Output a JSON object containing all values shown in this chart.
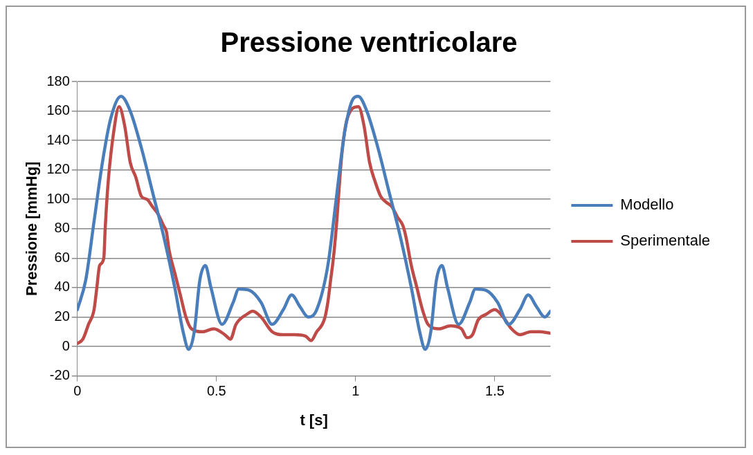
{
  "chart_data": {
    "type": "line",
    "title": "Pressione ventricolare",
    "xlabel": "t [s]",
    "ylabel": "Pressione [mmHg]",
    "xlim": [
      0,
      1.7
    ],
    "xticks": [
      0,
      0.5,
      1,
      1.5
    ],
    "ylim": [
      -20,
      180
    ],
    "yticks": [
      -20,
      0,
      20,
      40,
      60,
      80,
      100,
      120,
      140,
      160,
      180
    ],
    "grid": "y",
    "legend": "right",
    "marker": "none",
    "line_style": "solid",
    "series": [
      {
        "name": "Modello",
        "color": "#4a7ebb",
        "x": [
          0,
          0.03,
          0.06,
          0.09,
          0.12,
          0.157,
          0.19,
          0.23,
          0.27,
          0.31,
          0.35,
          0.38,
          0.4,
          0.42,
          0.44,
          0.46,
          0.48,
          0.52,
          0.56,
          0.58,
          0.62,
          0.66,
          0.7,
          0.74,
          0.77,
          0.8,
          0.83,
          0.86,
          0.9,
          0.93,
          0.96,
          0.99,
          1.009,
          1.04,
          1.08,
          1.12,
          1.16,
          1.2,
          1.23,
          1.25,
          1.27,
          1.29,
          1.31,
          1.33,
          1.37,
          1.41,
          1.43,
          1.47,
          1.51,
          1.55,
          1.59,
          1.62,
          1.65,
          1.68,
          1.7
        ],
        "values": [
          25,
          45,
          85,
          125,
          155,
          170,
          160,
          135,
          105,
          75,
          40,
          10,
          -2,
          10,
          45,
          55,
          40,
          15,
          30,
          39,
          38,
          30,
          15,
          25,
          35,
          27,
          20,
          25,
          55,
          100,
          145,
          168,
          170,
          160,
          135,
          105,
          75,
          40,
          10,
          -2,
          10,
          45,
          55,
          40,
          15,
          30,
          39,
          38,
          30,
          15,
          25,
          35,
          27,
          20,
          24
        ]
      },
      {
        "name": "Sperimentale",
        "color": "#be4b48",
        "x": [
          0,
          0.02,
          0.04,
          0.06,
          0.07,
          0.08,
          0.095,
          0.1,
          0.11,
          0.13,
          0.15,
          0.17,
          0.19,
          0.21,
          0.23,
          0.25,
          0.27,
          0.29,
          0.31,
          0.32,
          0.33,
          0.35,
          0.37,
          0.39,
          0.41,
          0.45,
          0.49,
          0.53,
          0.55,
          0.57,
          0.61,
          0.63,
          0.66,
          0.7,
          0.74,
          0.78,
          0.82,
          0.84,
          0.86,
          0.88,
          0.89,
          0.9,
          0.91,
          0.92,
          0.93,
          0.95,
          0.97,
          1.01,
          1.03,
          1.05,
          1.07,
          1.09,
          1.11,
          1.13,
          1.15,
          1.17,
          1.18,
          1.2,
          1.22,
          1.24,
          1.26,
          1.3,
          1.34,
          1.38,
          1.4,
          1.42,
          1.44,
          1.47,
          1.5,
          1.53,
          1.56,
          1.59,
          1.63,
          1.66,
          1.7
        ],
        "values": [
          2,
          5,
          15,
          25,
          40,
          55,
          60,
          80,
          110,
          145,
          163,
          150,
          125,
          115,
          102,
          100,
          95,
          90,
          82,
          78,
          65,
          50,
          35,
          20,
          12,
          10,
          12,
          8,
          5,
          15,
          22,
          24,
          20,
          10,
          8,
          8,
          7,
          4,
          10,
          15,
          20,
          30,
          45,
          60,
          80,
          130,
          155,
          163,
          150,
          125,
          112,
          102,
          98,
          95,
          88,
          82,
          75,
          55,
          40,
          25,
          15,
          12,
          14,
          12,
          6,
          8,
          18,
          22,
          25,
          20,
          12,
          8,
          10,
          10,
          9
        ]
      }
    ]
  }
}
